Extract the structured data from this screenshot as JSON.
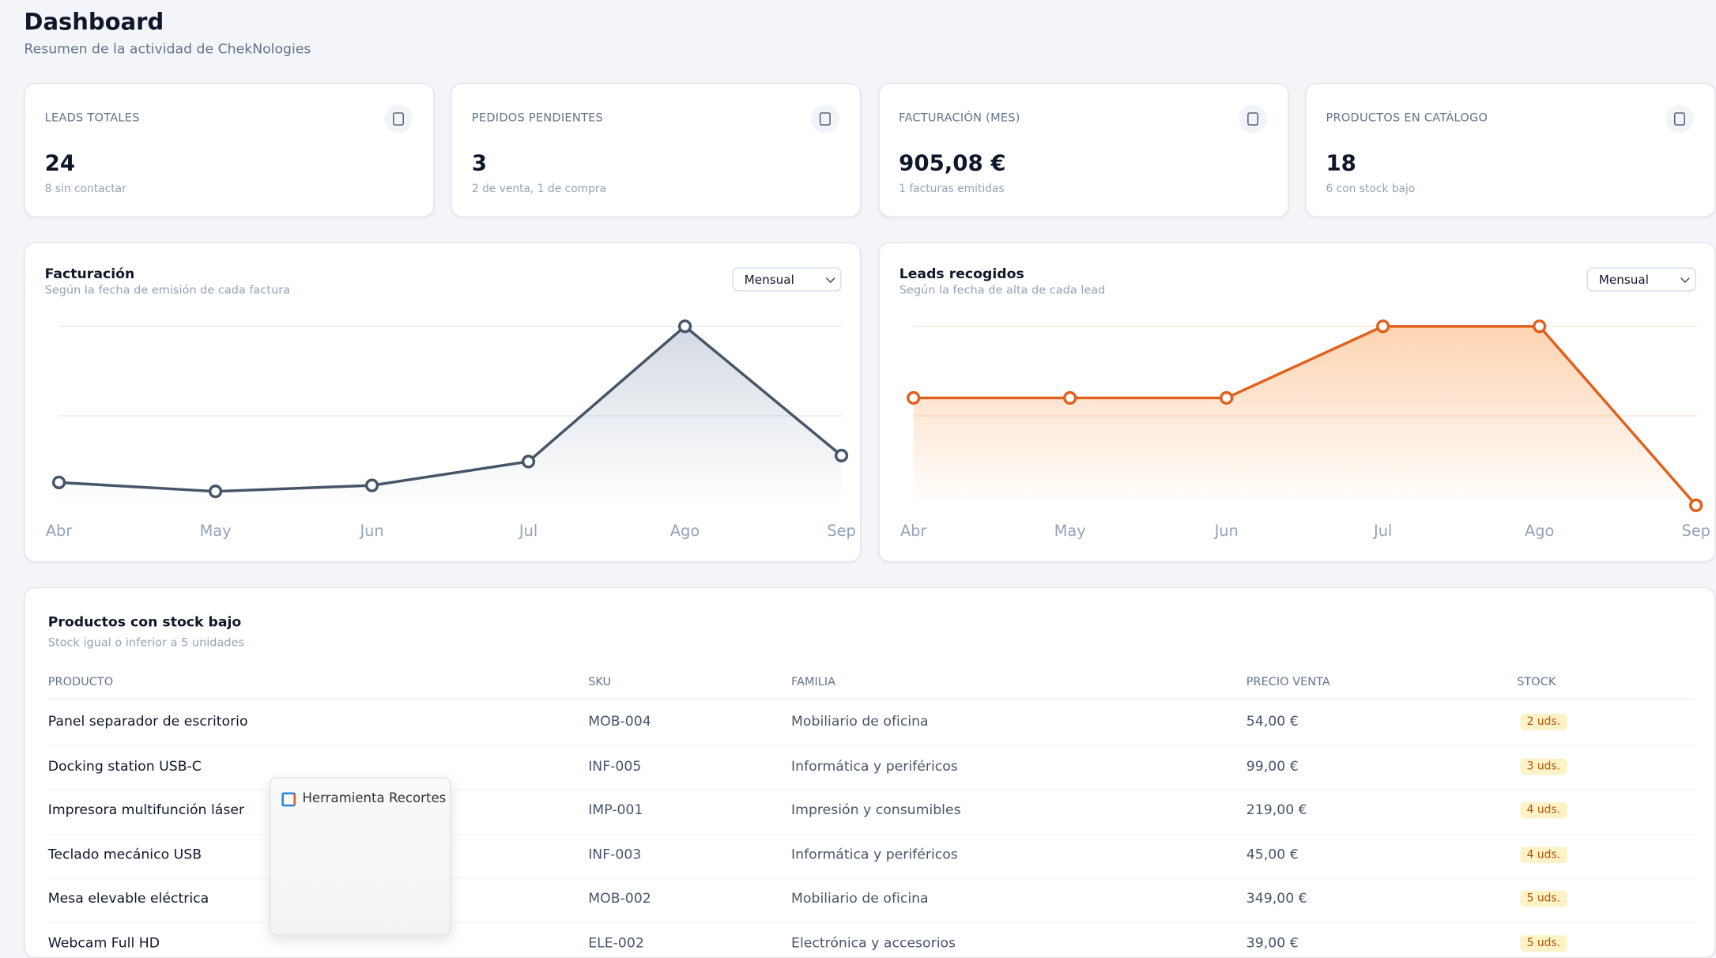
{
  "header": {
    "title": "Dashboard",
    "subtitle": "Resumen de la actividad de ChekNologies"
  },
  "cards": [
    {
      "label": "LEADS TOTALES",
      "value": "24",
      "note": "8 sin contactar"
    },
    {
      "label": "PEDIDOS PENDIENTES",
      "value": "3",
      "note": "2 de venta, 1 de compra"
    },
    {
      "label": "FACTURACIÓN (MES)",
      "value": "905,08 €",
      "note": "1 facturas emitidas"
    },
    {
      "label": "PRODUCTOS EN CATÁLOGO",
      "value": "18",
      "note": "6 con stock bajo"
    }
  ],
  "chart_data": [
    {
      "type": "line",
      "title": "Facturación",
      "subtitle": "Según la fecha de emisión de cada factura",
      "period": "Mensual",
      "categories": [
        "Abr",
        "May",
        "Jun",
        "Jul",
        "Ago",
        "Sep"
      ],
      "values": [
        115,
        70,
        100,
        220,
        900,
        250
      ],
      "color": "#475569",
      "grid_color": "#e5e7eb",
      "area_color": "#94a3b8",
      "ylim": [
        0,
        900
      ],
      "ygrid": [
        450,
        900
      ]
    },
    {
      "type": "line",
      "title": "Leads recogidos",
      "subtitle": "Según la fecha de alta de cada lead",
      "period": "Mensual",
      "categories": [
        "Abr",
        "May",
        "Jun",
        "Jul",
        "Ago",
        "Sep"
      ],
      "values": [
        3,
        3,
        3,
        5,
        5,
        0
      ],
      "color": "#e0601c",
      "grid_color": "#fbe3d2",
      "area_color": "#fb923c",
      "ylim": [
        0,
        5
      ],
      "ygrid": [
        2.5,
        5
      ]
    }
  ],
  "table": {
    "title": "Productos con stock bajo",
    "subtitle": "Stock igual o inferior a 5 unidades",
    "columns": [
      "PRODUCTO",
      "SKU",
      "FAMILIA",
      "PRECIO VENTA",
      "STOCK"
    ],
    "rows": [
      [
        "Panel separador de escritorio",
        "MOB-004",
        "Mobiliario de oficina",
        "54,00 €",
        "2 uds."
      ],
      [
        "Docking station USB-C",
        "INF-005",
        "Informática y periféricos",
        "99,00 €",
        "3 uds."
      ],
      [
        "Impresora multifunción láser",
        "IMP-001",
        "Impresión y consumibles",
        "219,00 €",
        "4 uds."
      ],
      [
        "Teclado mecánico USB",
        "INF-003",
        "Informática y periféricos",
        "45,00 €",
        "4 uds."
      ],
      [
        "Mesa elevable eléctrica",
        "MOB-002",
        "Mobiliario de oficina",
        "349,00 €",
        "5 uds."
      ],
      [
        "Webcam Full HD",
        "ELE-002",
        "Electrónica y accesorios",
        "39,00 €",
        "5 uds."
      ]
    ]
  },
  "popup": {
    "title": "Herramienta Recortes"
  }
}
